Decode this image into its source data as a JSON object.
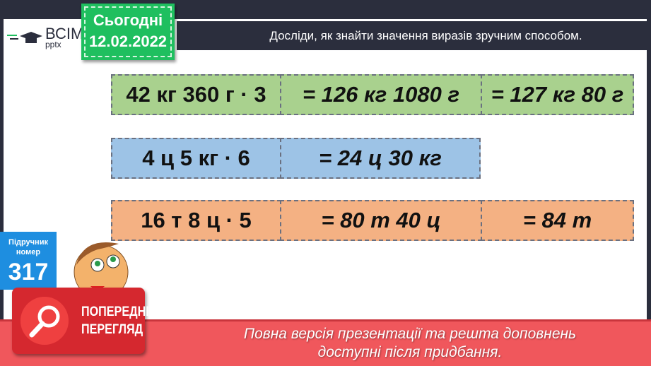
{
  "logo": {
    "line1": "ВСІМ",
    "line2": "pptx"
  },
  "date_badge": {
    "label": "Сьогодні",
    "date": "12.02.2022",
    "color": "#1fbf5f"
  },
  "title": "Досліди, як знайти значення виразів зручним способом.",
  "rows": [
    {
      "color": "#a9d18e",
      "cells": [
        "42 кг 360 г · 3",
        "= 126 кг 1080 г",
        "= 127 кг 80 г"
      ]
    },
    {
      "color": "#9dc3e6",
      "cells": [
        "4 ц 5 кг · 6",
        "= 24 ц 30 кг"
      ]
    },
    {
      "color": "#f4b183",
      "cells": [
        "16 т 8 ц · 5",
        "= 80 т 40 ц",
        "= 84 т"
      ]
    }
  ],
  "textbook": {
    "label1": "Підручник",
    "label2": "номер",
    "number": "317"
  },
  "preview": {
    "line1": "ПОПЕРЕДНІЙ",
    "line2": "ПЕРЕГЛЯД",
    "icon": "magnifier-icon"
  },
  "banner": {
    "line1": "Повна версія презентації та решта доповнень",
    "line2": "доступні після придбання."
  }
}
